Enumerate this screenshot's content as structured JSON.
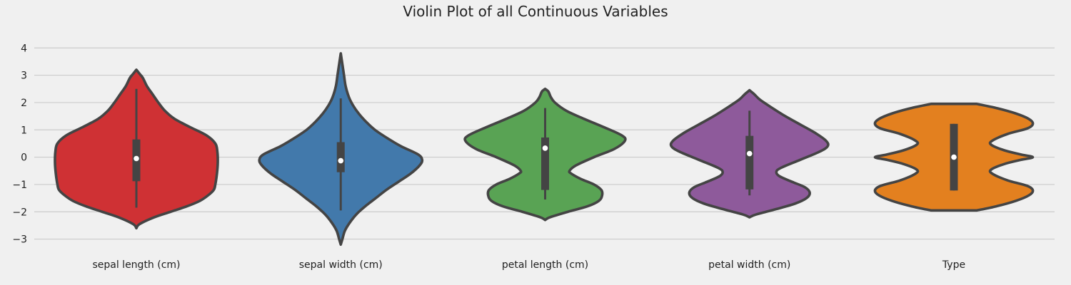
{
  "chart_data": {
    "type": "violin",
    "title": "Violin Plot of all Continuous Variables",
    "xlabel": "",
    "ylabel": "",
    "ylim": [
      -3.35,
      4.45
    ],
    "yticks": [
      -3,
      -2,
      -1,
      0,
      1,
      2,
      3,
      4
    ],
    "ytick_labels": [
      "−3",
      "−2",
      "−1",
      "0",
      "1",
      "2",
      "3",
      "4"
    ],
    "grid": "horizontal",
    "categories": [
      "sepal length (cm)",
      "sepal width (cm)",
      "petal length (cm)",
      "petal width (cm)",
      "Type"
    ],
    "series": [
      {
        "category": "sepal length (cm)",
        "color": "#cf3134",
        "y_min": -2.6,
        "y_max": 3.2,
        "whisker_low": -1.85,
        "q1": -0.88,
        "median": -0.05,
        "q3": 0.65,
        "whisker_high": 2.5,
        "density": [
          [
            -2.6,
            0
          ],
          [
            -2.45,
            0.04
          ],
          [
            -2.2,
            0.22
          ],
          [
            -2.0,
            0.42
          ],
          [
            -1.8,
            0.62
          ],
          [
            -1.6,
            0.78
          ],
          [
            -1.4,
            0.88
          ],
          [
            -1.2,
            0.95
          ],
          [
            -1.0,
            0.97
          ],
          [
            -0.6,
            0.99
          ],
          [
            -0.2,
            1.0
          ],
          [
            0.2,
            0.995
          ],
          [
            0.5,
            0.97
          ],
          [
            0.8,
            0.86
          ],
          [
            1.1,
            0.66
          ],
          [
            1.4,
            0.47
          ],
          [
            1.7,
            0.35
          ],
          [
            2.0,
            0.27
          ],
          [
            2.3,
            0.2
          ],
          [
            2.6,
            0.13
          ],
          [
            2.9,
            0.08
          ],
          [
            3.05,
            0.04
          ],
          [
            3.2,
            0
          ]
        ]
      },
      {
        "category": "sepal width (cm)",
        "color": "#4279ab",
        "y_min": -3.2,
        "y_max": 3.8,
        "whisker_low": -1.95,
        "q1": -0.55,
        "median": -0.13,
        "q3": 0.55,
        "whisker_high": 2.15,
        "density": [
          [
            -3.2,
            0
          ],
          [
            -3.0,
            0.02
          ],
          [
            -2.7,
            0.05
          ],
          [
            -2.4,
            0.11
          ],
          [
            -2.1,
            0.19
          ],
          [
            -1.8,
            0.3
          ],
          [
            -1.5,
            0.43
          ],
          [
            -1.2,
            0.56
          ],
          [
            -0.9,
            0.71
          ],
          [
            -0.6,
            0.86
          ],
          [
            -0.3,
            0.97
          ],
          [
            -0.1,
            1.0
          ],
          [
            0.1,
            0.95
          ],
          [
            0.4,
            0.74
          ],
          [
            0.7,
            0.57
          ],
          [
            1.0,
            0.42
          ],
          [
            1.3,
            0.31
          ],
          [
            1.6,
            0.22
          ],
          [
            1.9,
            0.15
          ],
          [
            2.2,
            0.1
          ],
          [
            2.6,
            0.06
          ],
          [
            3.0,
            0.04
          ],
          [
            3.4,
            0.02
          ],
          [
            3.8,
            0
          ]
        ]
      },
      {
        "category": "petal length (cm)",
        "color": "#59a354",
        "y_min": -2.3,
        "y_max": 2.5,
        "whisker_low": -1.55,
        "q1": -1.2,
        "median": 0.33,
        "q3": 0.72,
        "whisker_high": 1.8,
        "density": [
          [
            -2.3,
            0
          ],
          [
            -2.2,
            0.06
          ],
          [
            -2.0,
            0.28
          ],
          [
            -1.8,
            0.52
          ],
          [
            -1.6,
            0.66
          ],
          [
            -1.4,
            0.7
          ],
          [
            -1.2,
            0.69
          ],
          [
            -1.0,
            0.6
          ],
          [
            -0.8,
            0.44
          ],
          [
            -0.6,
            0.32
          ],
          [
            -0.5,
            0.3
          ],
          [
            -0.3,
            0.38
          ],
          [
            0.0,
            0.6
          ],
          [
            0.3,
            0.85
          ],
          [
            0.6,
            0.98
          ],
          [
            0.8,
            0.94
          ],
          [
            1.1,
            0.72
          ],
          [
            1.4,
            0.48
          ],
          [
            1.7,
            0.26
          ],
          [
            2.0,
            0.12
          ],
          [
            2.2,
            0.07
          ],
          [
            2.4,
            0.04
          ],
          [
            2.5,
            0
          ]
        ]
      },
      {
        "category": "petal width (cm)",
        "color": "#8e5a9b",
        "y_min": -2.2,
        "y_max": 2.45,
        "whisker_low": -1.4,
        "q1": -1.18,
        "median": 0.13,
        "q3": 0.78,
        "whisker_high": 1.7,
        "density": [
          [
            -2.2,
            0
          ],
          [
            -2.1,
            0.08
          ],
          [
            -1.9,
            0.33
          ],
          [
            -1.7,
            0.56
          ],
          [
            -1.5,
            0.7
          ],
          [
            -1.3,
            0.74
          ],
          [
            -1.1,
            0.68
          ],
          [
            -0.9,
            0.52
          ],
          [
            -0.7,
            0.37
          ],
          [
            -0.55,
            0.33
          ],
          [
            -0.4,
            0.38
          ],
          [
            -0.1,
            0.62
          ],
          [
            0.2,
            0.86
          ],
          [
            0.4,
            0.96
          ],
          [
            0.6,
            0.94
          ],
          [
            0.9,
            0.8
          ],
          [
            1.2,
            0.62
          ],
          [
            1.5,
            0.44
          ],
          [
            1.8,
            0.28
          ],
          [
            2.1,
            0.13
          ],
          [
            2.3,
            0.06
          ],
          [
            2.45,
            0
          ]
        ]
      },
      {
        "category": "Type",
        "color": "#e3801f",
        "y_min": -1.95,
        "y_max": 1.95,
        "whisker_low": -1.22,
        "q1": -1.22,
        "median": 0.0,
        "q3": 1.22,
        "whisker_high": 1.22,
        "density": [
          [
            -1.95,
            0.28
          ],
          [
            -1.8,
            0.52
          ],
          [
            -1.6,
            0.76
          ],
          [
            -1.4,
            0.92
          ],
          [
            -1.22,
            0.97
          ],
          [
            -1.05,
            0.9
          ],
          [
            -0.85,
            0.66
          ],
          [
            -0.6,
            0.47
          ],
          [
            -0.45,
            0.46
          ],
          [
            -0.25,
            0.62
          ],
          [
            -0.1,
            0.82
          ],
          [
            0.0,
            0.97
          ],
          [
            0.1,
            0.82
          ],
          [
            0.25,
            0.62
          ],
          [
            0.45,
            0.46
          ],
          [
            0.6,
            0.47
          ],
          [
            0.85,
            0.66
          ],
          [
            1.05,
            0.9
          ],
          [
            1.22,
            0.97
          ],
          [
            1.4,
            0.92
          ],
          [
            1.6,
            0.76
          ],
          [
            1.8,
            0.52
          ],
          [
            1.95,
            0.28
          ]
        ]
      }
    ]
  }
}
